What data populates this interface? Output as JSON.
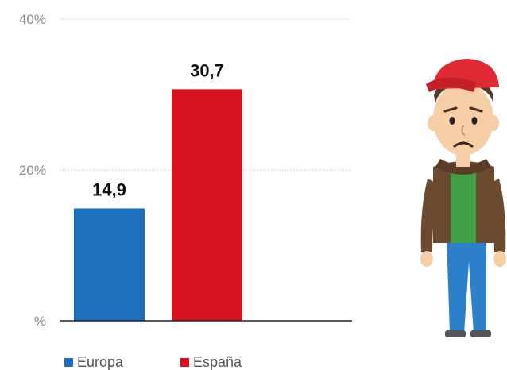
{
  "chart_data": {
    "type": "bar",
    "categories": [
      "Europa",
      "España"
    ],
    "values": [
      14.9,
      30.7
    ],
    "value_labels": [
      "14,9",
      "30,7"
    ],
    "colors": [
      "#1e6fbd",
      "#d8111e"
    ],
    "ylim": [
      0,
      40
    ],
    "y_ticks": [
      {
        "value": 0,
        "label": "%"
      },
      {
        "value": 20,
        "label": "20%"
      },
      {
        "value": 40,
        "label": "40%"
      }
    ],
    "grid": true,
    "legend": {
      "position": "bottom-left",
      "entries": [
        {
          "label": "Europa",
          "color": "#1e6fbd"
        },
        {
          "label": "España",
          "color": "#d8111e"
        }
      ]
    }
  },
  "illustration": {
    "icon": "sad-young-man-icon",
    "cap_color": "#e02a33",
    "shirt_color": "#3fa046",
    "jacket_color": "#6b4a2f",
    "pants_color": "#2e7fc9",
    "skin_color": "#f6cfa6",
    "hair_color": "#5a3a26"
  }
}
